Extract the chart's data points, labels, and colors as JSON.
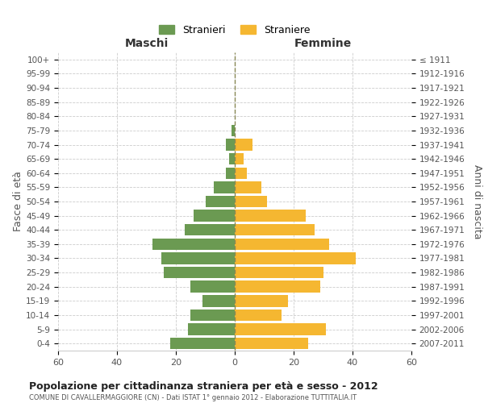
{
  "age_groups": [
    "0-4",
    "5-9",
    "10-14",
    "15-19",
    "20-24",
    "25-29",
    "30-34",
    "35-39",
    "40-44",
    "45-49",
    "50-54",
    "55-59",
    "60-64",
    "65-69",
    "70-74",
    "75-79",
    "80-84",
    "85-89",
    "90-94",
    "95-99",
    "100+"
  ],
  "birth_years": [
    "2007-2011",
    "2002-2006",
    "1997-2001",
    "1992-1996",
    "1987-1991",
    "1982-1986",
    "1977-1981",
    "1972-1976",
    "1967-1971",
    "1962-1966",
    "1957-1961",
    "1952-1956",
    "1947-1951",
    "1942-1946",
    "1937-1941",
    "1932-1936",
    "1927-1931",
    "1922-1926",
    "1917-1921",
    "1912-1916",
    "≤ 1911"
  ],
  "maschi": [
    22,
    16,
    15,
    11,
    15,
    24,
    25,
    28,
    17,
    14,
    10,
    7,
    3,
    2,
    3,
    1,
    0,
    0,
    0,
    0,
    0
  ],
  "femmine": [
    25,
    31,
    16,
    18,
    29,
    30,
    41,
    32,
    27,
    24,
    11,
    9,
    4,
    3,
    6,
    0,
    0,
    0,
    0,
    0,
    0
  ],
  "color_maschi": "#6b9a52",
  "color_femmine": "#f5b731",
  "xlim": 60,
  "title": "Popolazione per cittadinanza straniera per età e sesso - 2012",
  "subtitle": "COMUNE DI CAVALLERMAGGIORE (CN) - Dati ISTAT 1° gennaio 2012 - Elaborazione TUTTITALIA.IT",
  "ylabel_left": "Fasce di età",
  "ylabel_right": "Anni di nascita",
  "legend_maschi": "Stranieri",
  "legend_femmine": "Straniere",
  "header_left": "Maschi",
  "header_right": "Femmine",
  "background_color": "#ffffff",
  "grid_color": "#cccccc"
}
